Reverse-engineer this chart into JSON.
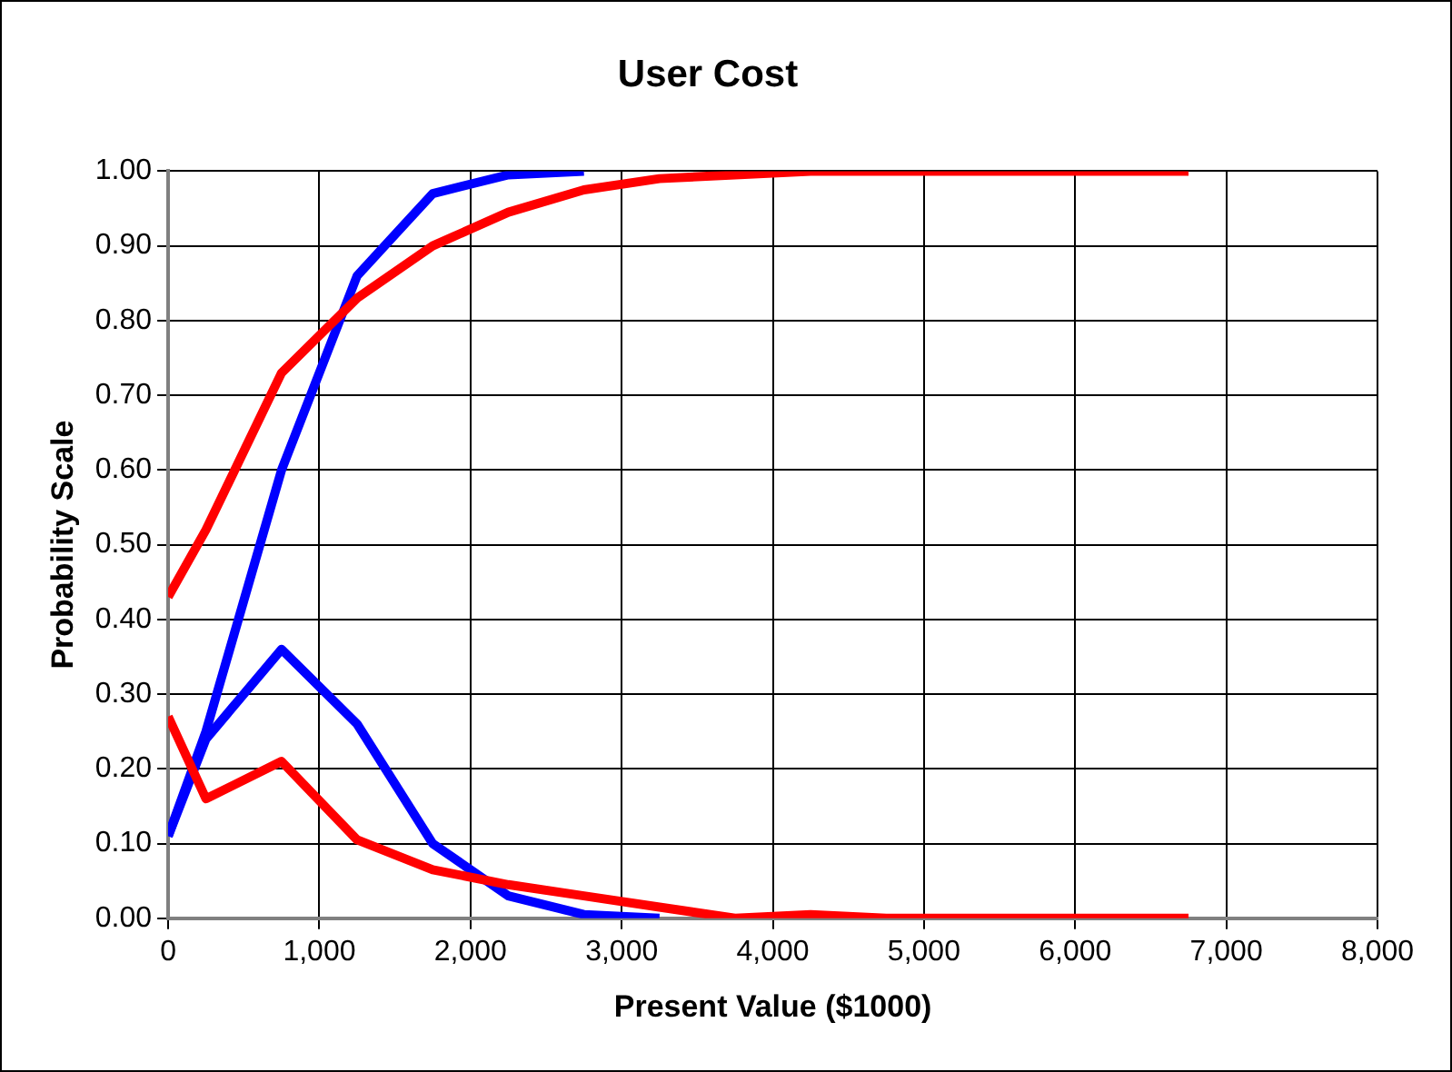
{
  "chart_data": {
    "type": "line",
    "title": "User Cost",
    "xlabel": "Present Value ($1000)",
    "ylabel": "Probability Scale",
    "x": [
      0,
      250,
      750,
      1250,
      1750,
      2250,
      2750,
      3250,
      3750,
      4250,
      4750,
      5250,
      5750,
      6250,
      6750
    ],
    "series": [
      {
        "color": "#0000ff",
        "values": [
          0.11,
          0.25,
          0.6,
          0.86,
          0.97,
          0.995,
          1,
          null,
          null,
          null,
          null,
          null,
          null,
          null,
          null
        ]
      },
      {
        "color": "#0000ff",
        "values": [
          0.11,
          0.24,
          0.36,
          0.26,
          0.1,
          0.03,
          0.005,
          0,
          null,
          null,
          null,
          null,
          null,
          null,
          null
        ]
      },
      {
        "color": "#ff0000",
        "values": [
          0.43,
          0.52,
          0.73,
          0.83,
          0.9,
          0.945,
          0.975,
          0.99,
          0.995,
          1,
          1,
          1,
          1,
          1,
          1
        ]
      },
      {
        "color": "#ff0000",
        "values": [
          0.27,
          0.16,
          0.21,
          0.105,
          0.065,
          0.045,
          0.03,
          0.015,
          0,
          0.005,
          0,
          0,
          0,
          0,
          0
        ]
      }
    ],
    "xlim": [
      0,
      8000
    ],
    "xticks": [
      {
        "value": 0,
        "label": "0"
      },
      {
        "value": 1000,
        "label": "1,000"
      },
      {
        "value": 2000,
        "label": "2,000"
      },
      {
        "value": 3000,
        "label": "3,000"
      },
      {
        "value": 4000,
        "label": "4,000"
      },
      {
        "value": 5000,
        "label": "5,000"
      },
      {
        "value": 6000,
        "label": "6,000"
      },
      {
        "value": 7000,
        "label": "7,000"
      },
      {
        "value": 8000,
        "label": "8,000"
      }
    ],
    "ylim": [
      0,
      1
    ],
    "yticks": [
      {
        "value": 0,
        "label": "0.00"
      },
      {
        "value": 0.1,
        "label": "0.10"
      },
      {
        "value": 0.2,
        "label": "0.20"
      },
      {
        "value": 0.3,
        "label": "0.30"
      },
      {
        "value": 0.4,
        "label": "0.40"
      },
      {
        "value": 0.5,
        "label": "0.50"
      },
      {
        "value": 0.6,
        "label": "0.60"
      },
      {
        "value": 0.7,
        "label": "0.70"
      },
      {
        "value": 0.8,
        "label": "0.80"
      },
      {
        "value": 0.9,
        "label": "0.90"
      },
      {
        "value": 1,
        "label": "1.00"
      }
    ],
    "grid": true,
    "legend": false,
    "marker": "none",
    "line_style": "solid"
  }
}
